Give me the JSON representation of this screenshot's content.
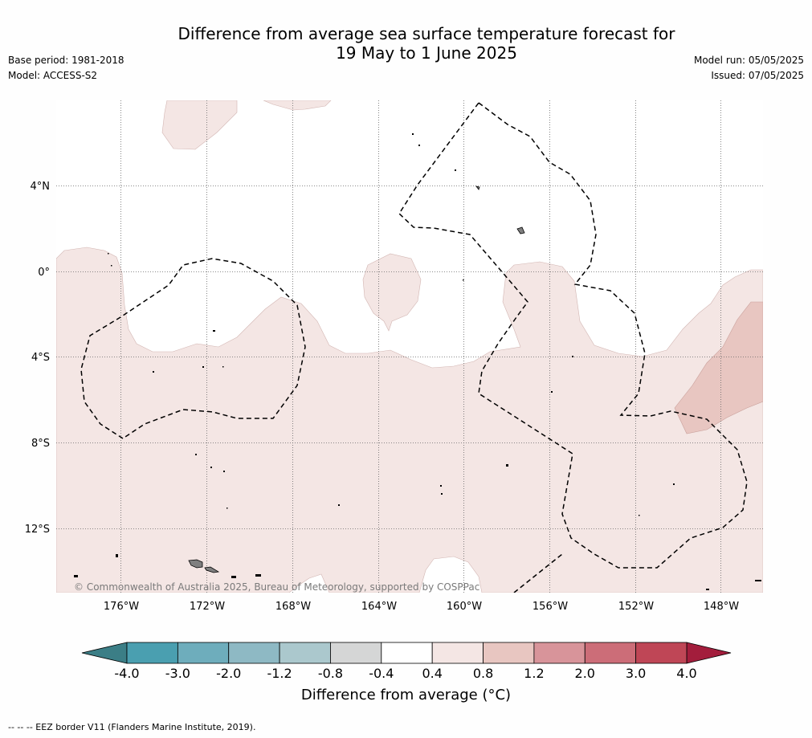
{
  "title_line1": "Difference from average sea surface temperature forecast for",
  "title_line2": "19 May to 1 June 2025",
  "meta_left": [
    "Base period: 1981-2018",
    "Model: ACCESS-S2"
  ],
  "meta_right": [
    "Model run: 05/05/2025",
    "Issued: 07/05/2025"
  ],
  "copyright": "© Commonwealth of Australia 2025, Bureau of Meteorology, supported by COSPPac",
  "lat_labels": [
    "4°N",
    "0°",
    "4°S",
    "8°S",
    "12°S"
  ],
  "lon_labels": [
    "176°W",
    "172°W",
    "168°W",
    "164°W",
    "160°W",
    "156°W",
    "152°W",
    "148°W"
  ],
  "colorbar": {
    "ticks": [
      "-4.0",
      "-3.0",
      "-2.0",
      "-1.2",
      "-0.8",
      "-0.4",
      "0.4",
      "0.8",
      "1.2",
      "2.0",
      "3.0",
      "4.0"
    ],
    "colors": [
      "#4a9fb0",
      "#6eadbc",
      "#8eb9c4",
      "#abc8cd",
      "#d5d6d6",
      "#ffffff",
      "#f4e6e4",
      "#e8c6c1",
      "#d8949a",
      "#cc6d78",
      "#bf4656"
    ],
    "under_color": "#3b7e86",
    "over_color": "#a31d3c",
    "label": "Difference from average (°C)"
  },
  "eez_note": "--  --  -- EEZ border V11 (Flanders Marine Institute, 2019).",
  "map_colors": {
    "anomaly_04_08": "#f4e6e4",
    "anomaly_08_12": "#e8c6c1",
    "eez_line": "#000000",
    "land": "#7f7f7f"
  }
}
